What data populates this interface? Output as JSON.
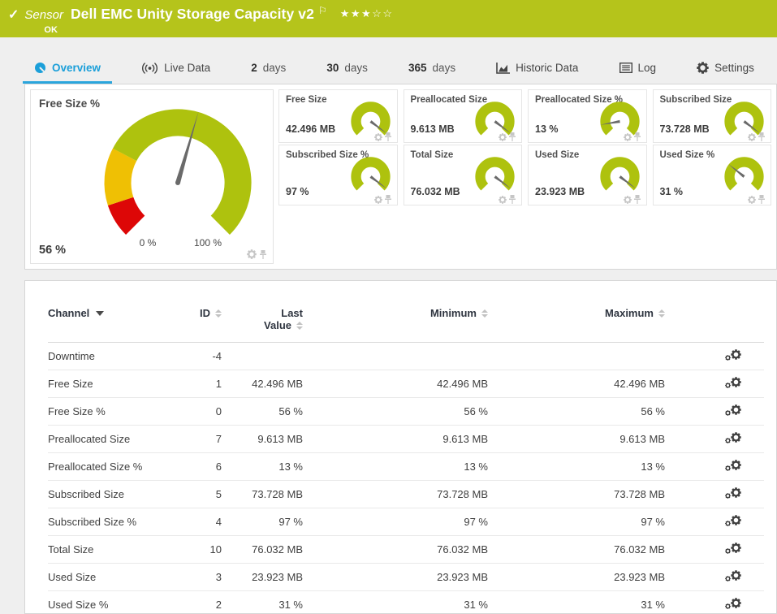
{
  "colors": {
    "header_bg": "#b5c41b",
    "accent_blue": "#1b9fd9",
    "underline_blue": "#2aa5dc",
    "gauge_green": "#aec20e",
    "gauge_yellow": "#efc004",
    "gauge_red": "#dd0707",
    "needle_gray": "#6a6a6a"
  },
  "header": {
    "kind_label": "Sensor",
    "title": "Dell EMC Unity Storage Capacity v2",
    "status": "OK",
    "stars_filled": 3,
    "stars_total": 5
  },
  "tabs": [
    {
      "id": "overview",
      "icon": "gauge-icon",
      "label": "Overview",
      "active": true
    },
    {
      "id": "live-data",
      "icon": "live-data-icon",
      "label": "Live Data",
      "active": false
    },
    {
      "id": "2-days",
      "num": "2",
      "label": "days",
      "active": false
    },
    {
      "id": "30-days",
      "num": "30",
      "label": "days",
      "active": false
    },
    {
      "id": "365-days",
      "num": "365",
      "label": "days",
      "active": false
    },
    {
      "id": "historic-data",
      "icon": "historic-data-icon",
      "label": "Historic Data",
      "active": false
    },
    {
      "id": "log",
      "icon": "log-icon",
      "label": "Log",
      "active": false
    },
    {
      "id": "settings",
      "icon": "settings-icon",
      "label": "Settings",
      "active": false
    }
  ],
  "overview": {
    "main_gauge": {
      "title": "Free Size %",
      "value": "56 %",
      "percent": 56,
      "min_label": "0 %",
      "max_label": "100 %",
      "segments": [
        {
          "from": 0,
          "to": 10,
          "color": "#dd0707"
        },
        {
          "from": 10,
          "to": 27,
          "color": "#efc004"
        },
        {
          "from": 27,
          "to": 100,
          "color": "#aec20e"
        }
      ]
    },
    "mini_gauges": [
      {
        "title": "Free Size",
        "value": "42.496 MB",
        "percent": 97
      },
      {
        "title": "Preallocated Size",
        "value": "9.613 MB",
        "percent": 97
      },
      {
        "title": "Preallocated Size %",
        "value": "13 %",
        "percent": 13
      },
      {
        "title": "Subscribed Size",
        "value": "73.728 MB",
        "percent": 97
      },
      {
        "title": "Subscribed Size %",
        "value": "97 %",
        "percent": 97
      },
      {
        "title": "Total Size",
        "value": "76.032 MB",
        "percent": 97
      },
      {
        "title": "Used Size",
        "value": "23.923 MB",
        "percent": 97
      },
      {
        "title": "Used Size %",
        "value": "31 %",
        "percent": 31
      }
    ]
  },
  "table": {
    "columns": [
      {
        "key": "channel",
        "label": "Channel",
        "sorted": true
      },
      {
        "key": "id",
        "label": "ID"
      },
      {
        "key": "last",
        "label": "Last Value",
        "two_line": true
      },
      {
        "key": "min",
        "label": "Minimum"
      },
      {
        "key": "max",
        "label": "Maximum"
      }
    ],
    "rows": [
      {
        "channel": "Downtime",
        "id": "-4",
        "last": "",
        "min": "",
        "max": ""
      },
      {
        "channel": "Free Size",
        "id": "1",
        "last": "42.496 MB",
        "min": "42.496 MB",
        "max": "42.496 MB"
      },
      {
        "channel": "Free Size %",
        "id": "0",
        "last": "56 %",
        "min": "56 %",
        "max": "56 %"
      },
      {
        "channel": "Preallocated Size",
        "id": "7",
        "last": "9.613 MB",
        "min": "9.613 MB",
        "max": "9.613 MB"
      },
      {
        "channel": "Preallocated Size %",
        "id": "6",
        "last": "13 %",
        "min": "13 %",
        "max": "13 %"
      },
      {
        "channel": "Subscribed Size",
        "id": "5",
        "last": "73.728 MB",
        "min": "73.728 MB",
        "max": "73.728 MB"
      },
      {
        "channel": "Subscribed Size %",
        "id": "4",
        "last": "97 %",
        "min": "97 %",
        "max": "97 %"
      },
      {
        "channel": "Total Size",
        "id": "10",
        "last": "76.032 MB",
        "min": "76.032 MB",
        "max": "76.032 MB"
      },
      {
        "channel": "Used Size",
        "id": "3",
        "last": "23.923 MB",
        "min": "23.923 MB",
        "max": "23.923 MB"
      },
      {
        "channel": "Used Size %",
        "id": "2",
        "last": "31 %",
        "min": "31 %",
        "max": "31 %"
      }
    ]
  }
}
